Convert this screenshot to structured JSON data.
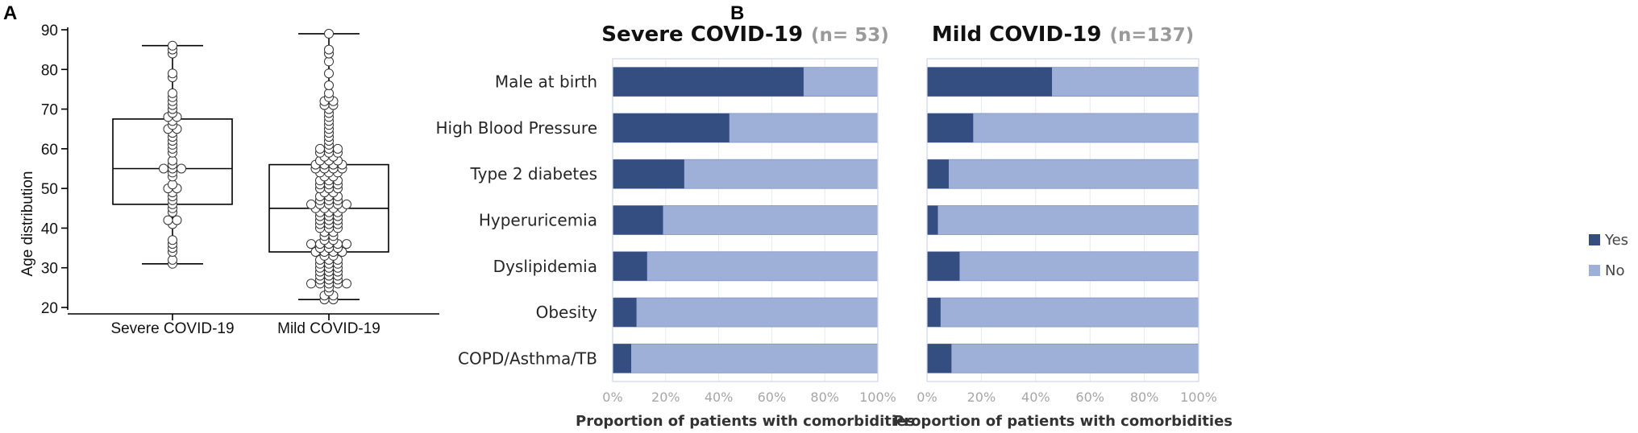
{
  "colors": {
    "yes": "#344e82",
    "no": "#9fb0d8",
    "plot_border": "#cfd6ea"
  },
  "chart_data": [
    {
      "type": "box",
      "panel_label": "A",
      "ylabel": "Age distribution",
      "ylim": [
        20,
        90
      ],
      "yticks": [
        20,
        30,
        40,
        50,
        60,
        70,
        80,
        90
      ],
      "groups": [
        {
          "name": "Severe COVID-19",
          "min": 31,
          "q1": 46,
          "median": 55,
          "q3": 67.5,
          "max": 86,
          "points": [
            86,
            85,
            84,
            79,
            78,
            74,
            73,
            72,
            71,
            70,
            69,
            68,
            68,
            67,
            66,
            65,
            65,
            64,
            63,
            62,
            61,
            60,
            59,
            57,
            56,
            55,
            55,
            55,
            54,
            53,
            51,
            50,
            50,
            49,
            48,
            47,
            46,
            45,
            44,
            42,
            42,
            41,
            37,
            36,
            35,
            34,
            32,
            31
          ]
        },
        {
          "name": "Mild COVID-19",
          "min": 22,
          "q1": 34,
          "median": 45,
          "q3": 56,
          "max": 89,
          "points": [
            89,
            85,
            84,
            82,
            79,
            76,
            74,
            73,
            72,
            72,
            71,
            71,
            70,
            69,
            68,
            67,
            66,
            65,
            64,
            63,
            62,
            61,
            60,
            60,
            60,
            59,
            59,
            59,
            58,
            58,
            57,
            57,
            57,
            56,
            56,
            56,
            56,
            55,
            55,
            55,
            55,
            54,
            54,
            54,
            53,
            53,
            52,
            52,
            52,
            51,
            51,
            51,
            50,
            50,
            50,
            49,
            49,
            48,
            48,
            48,
            47,
            47,
            47,
            46,
            46,
            46,
            46,
            46,
            45,
            45,
            45,
            45,
            44,
            44,
            44,
            43,
            43,
            43,
            42,
            42,
            42,
            41,
            41,
            41,
            40,
            40,
            40,
            39,
            39,
            38,
            38,
            37,
            37,
            36,
            36,
            36,
            36,
            36,
            35,
            35,
            35,
            34,
            34,
            34,
            34,
            33,
            33,
            32,
            32,
            32,
            31,
            31,
            31,
            30,
            30,
            30,
            29,
            29,
            29,
            28,
            28,
            28,
            27,
            27,
            27,
            26,
            26,
            26,
            26,
            26,
            25,
            24,
            23,
            23,
            22,
            22
          ]
        }
      ]
    },
    {
      "type": "bar",
      "stacked": true,
      "orientation": "horizontal",
      "panel_label": "B",
      "xlabel": "Proportion of patients with comorbidities",
      "xlim": [
        0,
        100
      ],
      "xticks": [
        "0%",
        "20%",
        "40%",
        "60%",
        "80%",
        "100%"
      ],
      "categories": [
        "Male at birth",
        "High Blood Pressure",
        "Type 2 diabetes",
        "Hyperuricemia",
        "Dyslipidemia",
        "Obesity",
        "COPD/Asthma/TB"
      ],
      "legend": {
        "position": "right",
        "entries": [
          "Yes",
          "No"
        ]
      },
      "panels": [
        {
          "title": "Severe COVID-19",
          "n_label": "(n= 53)",
          "yes_percent": [
            72,
            44,
            27,
            19,
            13,
            9,
            7
          ]
        },
        {
          "title": "Mild COVID-19",
          "n_label": "(n=137)",
          "yes_percent": [
            46,
            17,
            8,
            4,
            12,
            5,
            9
          ]
        }
      ]
    }
  ]
}
